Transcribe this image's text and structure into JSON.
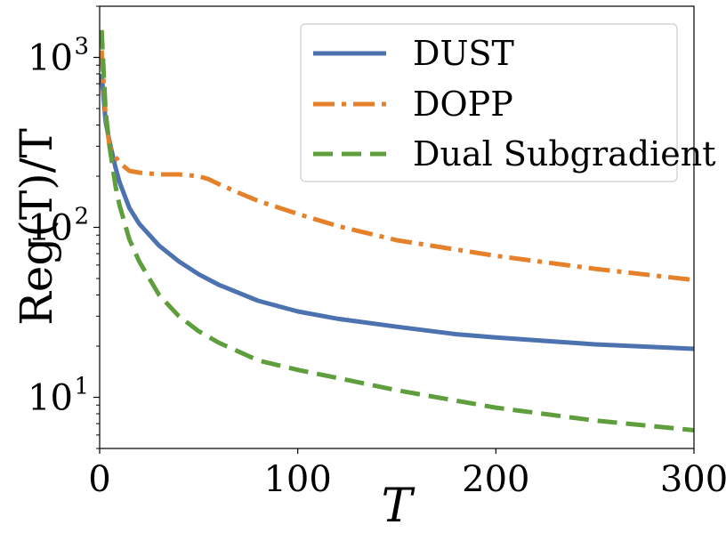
{
  "chart_data": {
    "type": "line",
    "title": "",
    "xlabel": "T",
    "ylabel": "Reg(T)/T",
    "xlim": [
      0,
      300
    ],
    "ylim": [
      5,
      2000
    ],
    "yscale": "log",
    "grid": false,
    "legend_position": "top-right",
    "x_ticks": [
      {
        "value": 0,
        "label": "0"
      },
      {
        "value": 100,
        "label": "100"
      },
      {
        "value": 200,
        "label": "200"
      },
      {
        "value": 300,
        "label": "300"
      }
    ],
    "y_ticks": [
      {
        "value": 10,
        "base": "10",
        "exp": "1"
      },
      {
        "value": 100,
        "base": "10",
        "exp": "2"
      },
      {
        "value": 1000,
        "base": "10",
        "exp": "3"
      }
    ],
    "series": [
      {
        "name": "DUST",
        "color": "#4c72b0",
        "dash": "solid",
        "x": [
          1,
          3,
          5,
          8,
          10,
          15,
          20,
          30,
          40,
          50,
          60,
          80,
          100,
          120,
          150,
          180,
          200,
          250,
          300
        ],
        "y": [
          800,
          420,
          320,
          225,
          185,
          130,
          105,
          78,
          63,
          53,
          46,
          37,
          32,
          29,
          26,
          23.5,
          22.5,
          20.5,
          19.3
        ]
      },
      {
        "name": "DOPP",
        "color": "#e5812a",
        "dash": "dashdot",
        "x": [
          1,
          3,
          5,
          8,
          10,
          15,
          20,
          30,
          40,
          50,
          55,
          60,
          70,
          80,
          100,
          120,
          150,
          200,
          250,
          300
        ],
        "y": [
          1100,
          450,
          300,
          260,
          240,
          215,
          210,
          205,
          205,
          200,
          192,
          180,
          160,
          143,
          120,
          102,
          84,
          68,
          57,
          49
        ]
      },
      {
        "name": "Dual Subgradient",
        "color": "#5f9e3c",
        "dash": "dashed",
        "x": [
          1,
          3,
          5,
          8,
          10,
          15,
          20,
          30,
          40,
          50,
          60,
          80,
          100,
          120,
          150,
          200,
          250,
          300
        ],
        "y": [
          1450,
          480,
          300,
          175,
          135,
          85,
          63,
          40,
          30,
          24.5,
          21,
          16.5,
          14.5,
          13,
          11,
          8.7,
          7.3,
          6.4
        ]
      }
    ]
  }
}
